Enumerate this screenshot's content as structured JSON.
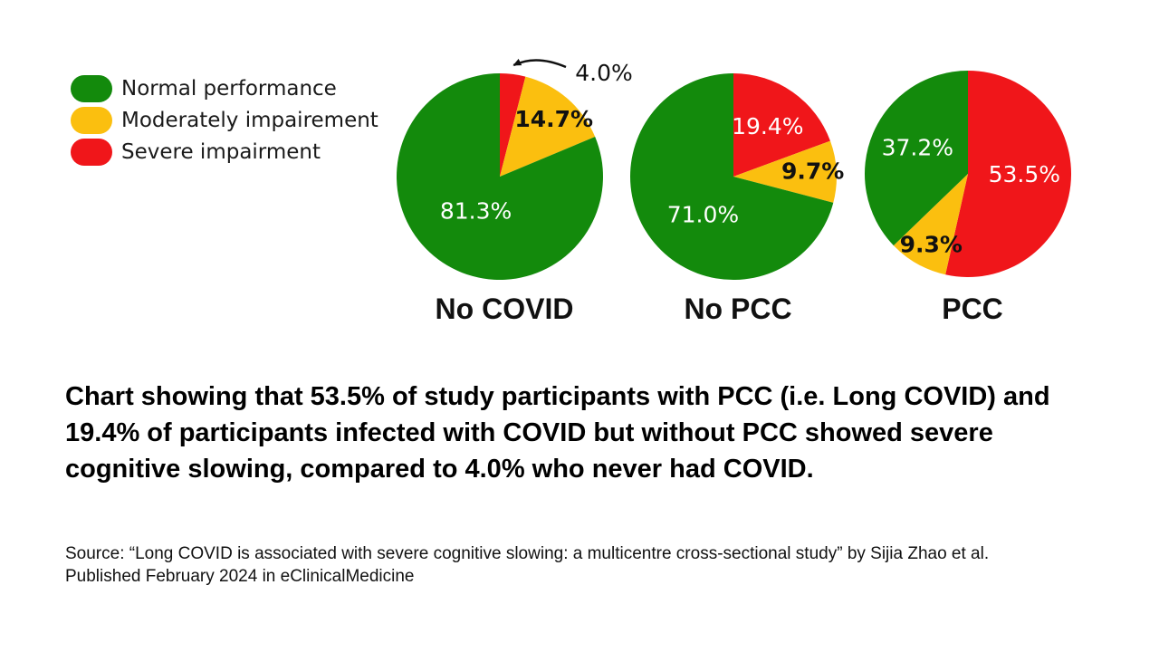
{
  "colors": {
    "normal": "#138a0c",
    "moderate": "#fbbf0f",
    "severe": "#f0161a"
  },
  "legend": [
    {
      "label": "Normal performance",
      "color_key": "normal"
    },
    {
      "label": "Moderately impairement",
      "color_key": "moderate"
    },
    {
      "label": "Severe impairment",
      "color_key": "severe"
    }
  ],
  "chart_data": [
    {
      "type": "pie",
      "title": "No COVID",
      "slices": [
        {
          "category": "Severe impairment",
          "color_key": "severe",
          "value": 4.0,
          "label": "4.0%"
        },
        {
          "category": "Moderately impairement",
          "color_key": "moderate",
          "value": 14.7,
          "label": "14.7%"
        },
        {
          "category": "Normal performance",
          "color_key": "normal",
          "value": 81.3,
          "label": "81.3%"
        }
      ]
    },
    {
      "type": "pie",
      "title": "No PCC",
      "slices": [
        {
          "category": "Severe impairment",
          "color_key": "severe",
          "value": 19.4,
          "label": "19.4%"
        },
        {
          "category": "Moderately impairement",
          "color_key": "moderate",
          "value": 9.7,
          "label": "9.7%"
        },
        {
          "category": "Normal performance",
          "color_key": "normal",
          "value": 71.0,
          "label": "71.0%"
        }
      ]
    },
    {
      "type": "pie",
      "title": "PCC",
      "slices": [
        {
          "category": "Severe impairment",
          "color_key": "severe",
          "value": 53.5,
          "label": "53.5%"
        },
        {
          "category": "Moderately impairement",
          "color_key": "moderate",
          "value": 9.3,
          "label": "9.3%"
        },
        {
          "category": "Normal performance",
          "color_key": "normal",
          "value": 37.2,
          "label": "37.2%"
        }
      ]
    }
  ],
  "caption": "Chart showing that 53.5% of study participants with PCC (i.e. Long COVID) and 19.4% of participants infected with COVID but without PCC showed severe cognitive slowing, compared to 4.0% who never had COVID.",
  "source": "Source: “Long COVID is associated with severe cognitive slowing: a multicentre cross-sectional study” by Sijia Zhao et al. Published February 2024 in eClinicalMedicine"
}
